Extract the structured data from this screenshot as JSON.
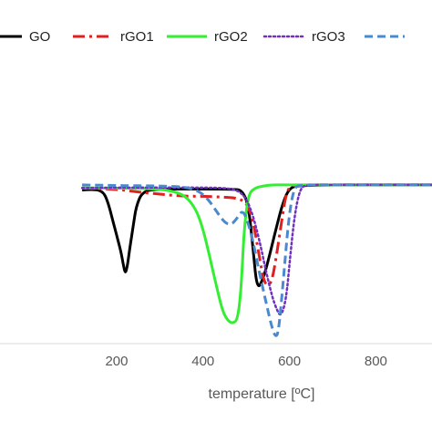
{
  "chart_data": {
    "type": "line",
    "title": "",
    "xlabel": "temperature [ºC]",
    "ylabel": "",
    "xlim": [
      -70,
      930
    ],
    "ylim": [
      0,
      1
    ],
    "x_ticks": [
      200,
      400,
      600,
      800
    ],
    "x_tick_labels": [
      "200",
      "400",
      "600",
      "800"
    ],
    "grid": false,
    "legend_position": "top",
    "series": [
      {
        "name": "GO",
        "color": "#000000",
        "dash": "solid",
        "x": [
          120,
          150,
          170,
          180,
          190,
          200,
          210,
          215,
          220,
          225,
          230,
          238,
          245,
          260,
          300,
          400,
          470,
          490,
          505,
          515,
          525,
          540,
          555,
          570,
          585,
          600,
          620,
          700,
          800,
          930
        ],
        "y": [
          0.74,
          0.745,
          0.73,
          0.68,
          0.6,
          0.52,
          0.44,
          0.38,
          0.33,
          0.37,
          0.45,
          0.56,
          0.66,
          0.735,
          0.745,
          0.745,
          0.744,
          0.74,
          0.67,
          0.47,
          0.25,
          0.31,
          0.43,
          0.56,
          0.68,
          0.75,
          0.762,
          0.765,
          0.765,
          0.765
        ]
      },
      {
        "name": "rGO1",
        "color": "#e02020",
        "dash": "dashdot",
        "x": [
          120,
          200,
          250,
          300,
          350,
          400,
          450,
          480,
          500,
          515,
          530,
          540,
          550,
          560,
          570,
          580,
          590,
          600,
          620,
          700,
          800,
          930
        ],
        "y": [
          0.75,
          0.745,
          0.73,
          0.72,
          0.71,
          0.71,
          0.705,
          0.7,
          0.68,
          0.6,
          0.42,
          0.3,
          0.27,
          0.3,
          0.42,
          0.56,
          0.7,
          0.76,
          0.765,
          0.765,
          0.765,
          0.765
        ]
      },
      {
        "name": "rGO2",
        "color": "#33ee33",
        "dash": "solid",
        "x": [
          120,
          200,
          300,
          340,
          365,
          385,
          400,
          415,
          430,
          445,
          458,
          470,
          480,
          488,
          495,
          505,
          520,
          540,
          560,
          580,
          600,
          700,
          800,
          930
        ],
        "y": [
          0.75,
          0.75,
          0.745,
          0.73,
          0.7,
          0.64,
          0.55,
          0.42,
          0.28,
          0.15,
          0.1,
          0.09,
          0.11,
          0.25,
          0.55,
          0.72,
          0.75,
          0.76,
          0.765,
          0.765,
          0.765,
          0.765,
          0.765,
          0.765
        ]
      },
      {
        "name": "rGO3",
        "color": "#7030c0",
        "dash": "dotted",
        "x": [
          120,
          200,
          300,
          400,
          450,
          480,
          500,
          515,
          530,
          545,
          560,
          570,
          580,
          592,
          602,
          612,
          625,
          640,
          700,
          800,
          930
        ],
        "y": [
          0.75,
          0.752,
          0.752,
          0.752,
          0.75,
          0.74,
          0.7,
          0.62,
          0.5,
          0.35,
          0.22,
          0.16,
          0.12,
          0.2,
          0.42,
          0.62,
          0.75,
          0.765,
          0.765,
          0.765,
          0.765
        ]
      },
      {
        "name": "",
        "color": "#4a88d0",
        "dash": "dashed",
        "x": [
          120,
          200,
          300,
          360,
          390,
          410,
          430,
          450,
          465,
          478,
          490,
          500,
          515,
          530,
          545,
          558,
          568,
          575,
          585,
          598,
          610,
          625,
          700,
          800,
          930
        ],
        "y": [
          0.765,
          0.762,
          0.76,
          0.755,
          0.735,
          0.7,
          0.64,
          0.58,
          0.57,
          0.6,
          0.64,
          0.61,
          0.5,
          0.34,
          0.2,
          0.08,
          0.02,
          0.05,
          0.28,
          0.6,
          0.75,
          0.765,
          0.765,
          0.765,
          0.765
        ]
      }
    ]
  }
}
